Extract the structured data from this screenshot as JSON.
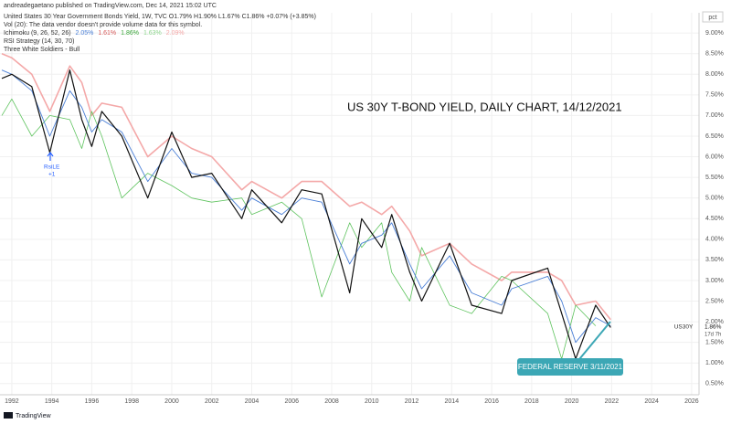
{
  "chart_data": {
    "type": "line",
    "publisher": "andreadegaetano published on TradingView.com, Dec 14, 2021 15:02 UTC",
    "legend_lines": [
      "United States 30 Year Government Bonds Yield, 1W, TVC  O1.79%  H1.90%  L1.67%  C1.86%  +0.07% (+3.85%)",
      "Vol (20): The data vendor doesn't provide volume data for this symbol."
    ],
    "ichimoku_label": "Ichimoku (9, 26, 52, 26)",
    "ichimoku_values": [
      "2.05%",
      "1.61%",
      "1.86%",
      "1.63%",
      "2.09%"
    ],
    "strategy_lines": [
      "RSI Strategy (14, 30, 70)",
      "Three White Soldiers - Bull"
    ],
    "title": "US 30Y T-BOND YIELD, DAILY CHART, 14/12/2021",
    "annotation": "FEDERAL RESERVE 3/11/2021",
    "signal_label": "RsiLE",
    "signal_sub": "+1",
    "axis_unit": "pct",
    "symbol_label": "US30Y",
    "last_value_label": "1.86%",
    "countdown": "17d 7h",
    "footer": "TradingView",
    "x": [
      1991.5,
      1992,
      1993,
      1993.9,
      1994.9,
      1995.5,
      1996,
      1996.5,
      1997.5,
      1998.8,
      2000,
      2001,
      2002,
      2003.5,
      2004,
      2005.5,
      2006.5,
      2007.5,
      2008.9,
      2009.5,
      2010.5,
      2011,
      2011.9,
      2012.5,
      2013.9,
      2015,
      2016.5,
      2017,
      2018.8,
      2019.5,
      2020.2,
      2021.2,
      2021.95
    ],
    "series": [
      {
        "color": "#f4a8a8",
        "width": 1.6,
        "values": [
          8.5,
          8.4,
          8.0,
          7.1,
          8.2,
          7.8,
          7.0,
          7.3,
          7.2,
          6.0,
          6.5,
          6.2,
          6.0,
          5.2,
          5.4,
          5.0,
          5.4,
          5.4,
          4.8,
          4.9,
          4.6,
          4.8,
          4.2,
          3.6,
          3.9,
          3.4,
          3.0,
          3.2,
          3.2,
          3.0,
          2.4,
          2.5,
          2.05
        ]
      },
      {
        "color": "#5ec35e",
        "width": 0.8,
        "values": [
          7.0,
          7.4,
          6.5,
          7.0,
          6.9,
          6.2,
          7.1,
          6.5,
          5.0,
          5.6,
          5.3,
          5.0,
          4.9,
          5.0,
          4.6,
          4.9,
          4.5,
          2.6,
          4.4,
          3.8,
          4.4,
          3.2,
          2.5,
          3.8,
          2.4,
          2.2,
          3.1,
          3.0,
          2.2,
          1.1,
          2.4,
          1.9,
          null
        ]
      },
      {
        "color": "#4a7fd6",
        "width": 0.9,
        "values": [
          8.1,
          8.0,
          7.6,
          6.5,
          7.6,
          7.2,
          6.6,
          6.9,
          6.6,
          5.4,
          6.2,
          5.6,
          5.5,
          4.7,
          5.0,
          4.6,
          5.0,
          4.9,
          3.4,
          3.9,
          4.1,
          4.4,
          3.4,
          2.8,
          3.6,
          2.7,
          2.4,
          2.8,
          3.1,
          2.5,
          1.5,
          2.1,
          1.9
        ]
      },
      {
        "color": "#111111",
        "width": 1.2,
        "values": [
          7.9,
          8.0,
          7.7,
          6.1,
          8.1,
          6.9,
          6.25,
          7.1,
          6.5,
          5.0,
          6.6,
          5.5,
          5.6,
          4.5,
          5.2,
          4.4,
          5.2,
          5.1,
          2.7,
          4.5,
          3.8,
          4.6,
          3.2,
          2.5,
          3.9,
          2.4,
          2.2,
          3.0,
          3.3,
          2.2,
          1.1,
          2.4,
          1.86
        ]
      }
    ],
    "xlim": [
      1991.41,
      2026.37
    ],
    "xticks": [
      1992,
      1994,
      1996,
      1998,
      2000,
      2002,
      2004,
      2006,
      2008,
      2010,
      2012,
      2014,
      2016,
      2018,
      2020,
      2022,
      2024,
      2026
    ],
    "ylim": [
      0.23,
      9.49
    ],
    "yticks": [
      {
        "value": 0.5,
        "label": "0.50%"
      },
      {
        "value": 1.0,
        "label": "1.00%"
      },
      {
        "value": 1.5,
        "label": "1.50%"
      },
      {
        "value": 2.0,
        "label": "2.00%"
      },
      {
        "value": 2.5,
        "label": "2.50%"
      },
      {
        "value": 3.0,
        "label": "3.00%"
      },
      {
        "value": 3.5,
        "label": "3.50%"
      },
      {
        "value": 4.0,
        "label": "4.00%"
      },
      {
        "value": 4.5,
        "label": "4.50%"
      },
      {
        "value": 5.0,
        "label": "5.00%"
      },
      {
        "value": 5.5,
        "label": "5.50%"
      },
      {
        "value": 6.0,
        "label": "6.00%"
      },
      {
        "value": 6.5,
        "label": "6.50%"
      },
      {
        "value": 7.0,
        "label": "7.00%"
      },
      {
        "value": 7.5,
        "label": "7.50%"
      },
      {
        "value": 8.0,
        "label": "8.00%"
      },
      {
        "value": 8.5,
        "label": "8.50%"
      },
      {
        "value": 9.0,
        "label": "9.00%"
      }
    ],
    "grid": true
  }
}
